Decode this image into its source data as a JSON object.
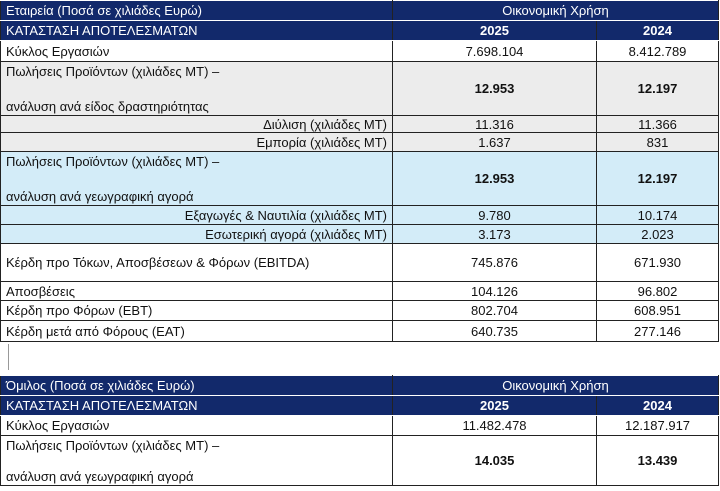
{
  "colors": {
    "header": "#12296b",
    "grey_row": "#ececec",
    "blue_row": "#d3ecf8"
  },
  "company": {
    "title": "Εταιρεία (Ποσά σε χιλιάδες Ευρώ)",
    "fiscal_label": "Οικονομική Χρήση",
    "statement_label": "ΚΑΤΑΣΤΑΣΗ ΑΠΟΤΕΛΕΣΜΑΤΩΝ",
    "years": [
      "2025",
      "2024"
    ],
    "rows": [
      {
        "label": "Κύκλος Εργασιών",
        "v2025": "7.698.104",
        "v2024": "8.412.789",
        "shade": "white",
        "h": 21
      },
      {
        "label": "Πωλήσεις Προϊόντων (χιλιάδες ΜΤ) –",
        "label2": "ανάλυση ανά είδος δραστηριότητας",
        "v2025": "12.953",
        "v2024": "12.197",
        "shade": "grey",
        "bold": true,
        "h": 54
      },
      {
        "label": "Διύλιση (χιλιάδες ΜΤ)",
        "v2025": "11.316",
        "v2024": "11.366",
        "shade": "grey",
        "indent": true,
        "h": 17
      },
      {
        "label": "Εμπορία (χιλιάδες ΜΤ)",
        "v2025": "1.637",
        "v2024": "831",
        "shade": "grey",
        "indent": true,
        "h": 19
      },
      {
        "label": "Πωλήσεις Προϊόντων (χιλιάδες ΜΤ) –",
        "label2": "ανάλυση ανά γεωγραφική αγορά",
        "v2025": "12.953",
        "v2024": "12.197",
        "shade": "blue",
        "bold": true,
        "h": 54
      },
      {
        "label": "Εξαγωγές & Ναυτιλία (χιλιάδες ΜΤ)",
        "v2025": "9.780",
        "v2024": "10.174",
        "shade": "blue",
        "indent": true,
        "h": 19
      },
      {
        "label": "Εσωτερική αγορά (χιλιάδες ΜΤ)",
        "v2025": "3.173",
        "v2024": "2.023",
        "shade": "blue",
        "indent": true,
        "h": 19
      },
      {
        "label": "Κέρδη προ Τόκων, Αποσβέσεων & Φόρων (EBITDA)",
        "v2025": "745.876",
        "v2024": "671.930",
        "shade": "white",
        "h": 38
      },
      {
        "label": "Αποσβέσεις",
        "v2025": "104.126",
        "v2024": "96.802",
        "shade": "white",
        "h": 19
      },
      {
        "label": "Κέρδη προ Φόρων (ΕΒΤ)",
        "v2025": "802.704",
        "v2024": "608.951",
        "shade": "white",
        "h": 20
      },
      {
        "label": "Κέρδη μετά από Φόρους (ΕΑΤ)",
        "v2025": "640.735",
        "v2024": "277.146",
        "shade": "white",
        "h": 21
      }
    ]
  },
  "group": {
    "title": "Όμιλος (Ποσά σε χιλιάδες Ευρώ)",
    "fiscal_label": "Οικονομική Χρήση",
    "statement_label": "ΚΑΤΑΣΤΑΣΗ ΑΠΟΤΕΛΕΣΜΑΤΩΝ",
    "years": [
      "2025",
      "2024"
    ],
    "rows": [
      {
        "label": "Κύκλος Εργασιών",
        "v2025": "11.482.478",
        "v2024": "12.187.917",
        "shade": "white",
        "h": 20
      },
      {
        "label": "Πωλήσεις Προϊόντων (χιλιάδες ΜΤ) –",
        "label2": "ανάλυση ανά γεωγραφική αγορά",
        "v2025": "14.035",
        "v2024": "13.439",
        "shade": "white",
        "bold": true,
        "h": 50
      }
    ]
  }
}
